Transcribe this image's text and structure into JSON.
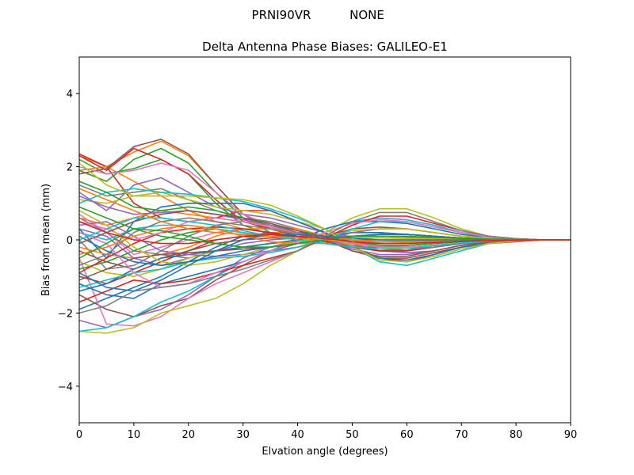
{
  "chart_data": {
    "type": "line",
    "suptitle_left": "PRNI90VR",
    "suptitle_right": "NONE",
    "title": "Delta Antenna Phase Biases: GALILEO-E1",
    "xlabel": "Elvation angle (degrees)",
    "ylabel": "Bias from mean (mm)",
    "xlim": [
      0,
      90
    ],
    "ylim": [
      -5,
      5
    ],
    "x": [
      0,
      5,
      10,
      15,
      20,
      25,
      30,
      35,
      40,
      45,
      50,
      55,
      60,
      65,
      70,
      75,
      80,
      85,
      90
    ],
    "xticks": [
      0,
      10,
      20,
      30,
      40,
      50,
      60,
      70,
      80,
      90
    ],
    "yticks": [
      -4,
      -2,
      0,
      2,
      4
    ],
    "xtick_labels": [
      "0",
      "10",
      "20",
      "30",
      "40",
      "50",
      "60",
      "70",
      "80",
      "90"
    ],
    "ytick_labels": [
      "−4",
      "−2",
      "0",
      "2",
      "4"
    ],
    "grid": false,
    "legend": "none",
    "colors": [
      "#1f77b4",
      "#ff7f0e",
      "#2ca02c",
      "#d62728",
      "#9467bd",
      "#8c564b",
      "#e377c2",
      "#7f7f7f",
      "#bcbd22",
      "#17becf"
    ],
    "series": [
      {
        "values": [
          -1.9,
          -1.6,
          -1.3,
          -1.0,
          -0.6,
          -0.2,
          0.1,
          0.2,
          0.05,
          -0.1,
          -0.2,
          -0.2,
          -0.15,
          -0.1,
          -0.05,
          -0.03,
          -0.01,
          0.0,
          0.0
        ]
      },
      {
        "values": [
          2.3,
          2.0,
          1.6,
          1.2,
          0.8,
          0.5,
          0.3,
          0.2,
          0.2,
          0.15,
          0.1,
          0.1,
          0.08,
          0.05,
          0.03,
          0.02,
          0.01,
          0.0,
          0.0
        ]
      },
      {
        "values": [
          2.2,
          1.8,
          1.95,
          2.2,
          1.8,
          1.0,
          0.4,
          0.15,
          0.05,
          0.0,
          -0.05,
          -0.05,
          -0.04,
          -0.03,
          -0.02,
          -0.01,
          0.0,
          0.0,
          0.0
        ]
      },
      {
        "values": [
          2.35,
          2.0,
          1.0,
          0.6,
          0.5,
          0.6,
          0.8,
          0.8,
          0.5,
          0.2,
          -0.2,
          -0.5,
          -0.6,
          -0.4,
          -0.2,
          -0.1,
          -0.05,
          0.0,
          0.0
        ]
      },
      {
        "values": [
          -2.2,
          -2.4,
          -2.1,
          -1.9,
          -1.5,
          -1.0,
          -0.5,
          -0.2,
          0.0,
          0.1,
          0.2,
          0.2,
          0.15,
          0.1,
          0.05,
          0.02,
          0.01,
          0.0,
          0.0
        ]
      },
      {
        "values": [
          -1.5,
          -1.9,
          -2.1,
          -1.8,
          -1.6,
          -1.1,
          -0.7,
          -0.3,
          -0.1,
          0.1,
          0.3,
          0.35,
          0.3,
          0.2,
          0.1,
          0.05,
          0.02,
          0.0,
          0.0
        ]
      },
      {
        "values": [
          -0.5,
          -2.3,
          -2.35,
          -2.1,
          -1.6,
          -1.2,
          -0.9,
          -0.6,
          -0.3,
          0.1,
          0.5,
          0.6,
          0.55,
          0.4,
          0.2,
          0.1,
          0.03,
          0.0,
          0.0
        ]
      },
      {
        "values": [
          0.6,
          0.2,
          -0.3,
          -0.4,
          -0.5,
          -0.3,
          -0.2,
          -0.1,
          0.0,
          0.1,
          0.1,
          0.1,
          0.08,
          0.05,
          0.03,
          0.02,
          0.01,
          0.0,
          0.0
        ]
      },
      {
        "values": [
          -2.5,
          -2.55,
          -2.4,
          -2.0,
          -1.8,
          -1.6,
          -1.2,
          -0.7,
          -0.3,
          0.2,
          0.6,
          0.85,
          0.85,
          0.6,
          0.3,
          0.1,
          0.03,
          0.0,
          0.0
        ]
      },
      {
        "values": [
          -2.5,
          -2.4,
          -2.1,
          -1.7,
          -1.4,
          -1.0,
          -0.6,
          -0.3,
          0.0,
          0.3,
          0.5,
          0.6,
          0.55,
          0.4,
          0.2,
          0.1,
          0.03,
          0.0,
          0.0
        ]
      },
      {
        "values": [
          -1.2,
          -1.5,
          -1.6,
          -1.2,
          -1.0,
          -0.8,
          -0.6,
          -0.3,
          0.0,
          0.3,
          0.5,
          0.5,
          0.45,
          0.3,
          0.15,
          0.07,
          0.02,
          0.0,
          0.0
        ]
      },
      {
        "values": [
          1.9,
          2.0,
          2.4,
          2.7,
          2.3,
          1.5,
          0.7,
          0.3,
          0.1,
          0.0,
          -0.2,
          -0.3,
          -0.3,
          -0.2,
          -0.1,
          -0.05,
          -0.02,
          0.0,
          0.0
        ]
      },
      {
        "values": [
          1.9,
          1.6,
          2.2,
          2.5,
          2.1,
          1.3,
          0.6,
          0.2,
          0.05,
          -0.05,
          -0.2,
          -0.3,
          -0.25,
          -0.2,
          -0.1,
          -0.05,
          -0.02,
          0.0,
          0.0
        ]
      },
      {
        "values": [
          2.3,
          1.9,
          2.5,
          2.2,
          1.8,
          1.1,
          0.5,
          0.3,
          0.2,
          0.1,
          -0.1,
          -0.2,
          -0.2,
          -0.15,
          -0.1,
          -0.05,
          -0.02,
          0.0,
          0.0
        ]
      },
      {
        "values": [
          1.3,
          0.8,
          1.5,
          1.7,
          1.3,
          0.9,
          0.7,
          0.6,
          0.4,
          0.2,
          -0.1,
          -0.3,
          -0.35,
          -0.3,
          -0.15,
          -0.07,
          -0.02,
          0.0,
          0.0
        ]
      },
      {
        "values": [
          1.8,
          1.95,
          2.55,
          2.75,
          2.35,
          1.5,
          0.7,
          0.3,
          0.1,
          0.0,
          -0.3,
          -0.5,
          -0.5,
          -0.35,
          -0.2,
          -0.1,
          -0.03,
          0.0,
          0.0
        ]
      },
      {
        "values": [
          2.0,
          1.8,
          1.9,
          2.1,
          1.9,
          1.3,
          0.7,
          0.4,
          0.2,
          0.05,
          -0.1,
          -0.2,
          -0.2,
          -0.15,
          -0.1,
          -0.05,
          -0.02,
          0.0,
          0.0
        ]
      },
      {
        "values": [
          1.5,
          1.2,
          1.3,
          1.4,
          1.1,
          0.8,
          0.6,
          0.5,
          0.3,
          0.1,
          -0.1,
          -0.2,
          -0.2,
          -0.15,
          -0.1,
          -0.05,
          -0.02,
          0.0,
          0.0
        ]
      },
      {
        "values": [
          1.1,
          1.0,
          1.2,
          1.3,
          1.1,
          0.9,
          0.8,
          0.7,
          0.5,
          0.3,
          0.0,
          -0.2,
          -0.25,
          -0.2,
          -0.1,
          -0.05,
          -0.02,
          0.0,
          0.0
        ]
      },
      {
        "values": [
          1.0,
          1.3,
          1.4,
          1.3,
          1.25,
          1.15,
          1.05,
          0.85,
          0.6,
          0.3,
          -0.2,
          -0.6,
          -0.7,
          -0.5,
          -0.3,
          -0.1,
          -0.03,
          0.0,
          0.0
        ]
      },
      {
        "values": [
          0.3,
          -0.5,
          0.5,
          0.9,
          1.0,
          1.0,
          1.0,
          0.8,
          0.5,
          0.2,
          -0.2,
          -0.5,
          -0.55,
          -0.4,
          -0.2,
          -0.1,
          -0.03,
          0.0,
          0.0
        ]
      },
      {
        "values": [
          0.6,
          0.4,
          0.6,
          0.8,
          0.7,
          0.6,
          0.5,
          0.4,
          0.3,
          0.1,
          -0.1,
          -0.2,
          -0.2,
          -0.15,
          -0.1,
          -0.05,
          -0.02,
          0.0,
          0.0
        ]
      },
      {
        "values": [
          -0.8,
          -0.6,
          -0.3,
          0.0,
          0.2,
          0.3,
          0.2,
          0.1,
          0.0,
          -0.1,
          -0.2,
          -0.2,
          -0.15,
          -0.1,
          -0.05,
          -0.02,
          -0.01,
          0.0,
          0.0
        ]
      },
      {
        "values": [
          -1.0,
          -1.2,
          -0.9,
          -0.6,
          -0.3,
          0.0,
          0.1,
          0.1,
          0.05,
          0.0,
          -0.05,
          -0.05,
          -0.04,
          -0.03,
          -0.02,
          -0.01,
          0.0,
          0.0,
          0.0
        ]
      },
      {
        "values": [
          0.3,
          0.1,
          -0.5,
          -0.7,
          -0.5,
          -0.3,
          -0.1,
          0.0,
          0.05,
          0.1,
          0.1,
          0.1,
          0.08,
          0.05,
          0.03,
          0.02,
          0.01,
          0.0,
          0.0
        ]
      },
      {
        "values": [
          -0.3,
          -0.6,
          -0.8,
          -0.5,
          -0.3,
          -0.1,
          0.0,
          0.05,
          0.05,
          0.05,
          0.0,
          0.0,
          0.0,
          0.0,
          0.0,
          0.0,
          0.0,
          0.0,
          0.0
        ]
      },
      {
        "values": [
          0.7,
          0.2,
          -0.4,
          -0.2,
          0.0,
          0.2,
          0.3,
          0.2,
          0.1,
          0.0,
          -0.1,
          -0.15,
          -0.15,
          -0.1,
          -0.05,
          -0.02,
          -0.01,
          0.0,
          0.0
        ]
      },
      {
        "values": [
          0.0,
          -0.8,
          -0.7,
          -0.3,
          0.1,
          0.4,
          0.5,
          0.35,
          0.2,
          0.0,
          -0.2,
          -0.3,
          -0.3,
          -0.2,
          -0.1,
          -0.05,
          -0.02,
          0.0,
          0.0
        ]
      },
      {
        "values": [
          -0.6,
          -0.9,
          -1.0,
          -0.8,
          -0.5,
          -0.3,
          -0.2,
          -0.1,
          -0.05,
          0.0,
          0.05,
          0.05,
          0.04,
          0.03,
          0.02,
          0.01,
          0.0,
          0.0,
          0.0
        ]
      },
      {
        "values": [
          0.2,
          0.0,
          0.3,
          0.4,
          0.4,
          0.3,
          0.2,
          0.1,
          0.05,
          0.0,
          -0.05,
          -0.05,
          -0.04,
          -0.03,
          -0.02,
          -0.01,
          0.0,
          0.0,
          0.0
        ]
      },
      {
        "values": [
          -1.4,
          -1.2,
          -0.8,
          -0.5,
          -0.4,
          -0.3,
          -0.2,
          -0.1,
          0.0,
          0.1,
          0.2,
          0.2,
          0.15,
          0.1,
          0.05,
          0.02,
          0.01,
          0.0,
          0.0
        ]
      },
      {
        "values": [
          -0.2,
          -0.4,
          -0.5,
          -0.4,
          -0.2,
          0.1,
          0.3,
          0.3,
          0.2,
          0.1,
          0.0,
          -0.05,
          -0.05,
          -0.03,
          -0.02,
          -0.01,
          0.0,
          0.0,
          0.0
        ]
      },
      {
        "values": [
          0.9,
          0.6,
          0.3,
          0.1,
          0.0,
          -0.1,
          -0.2,
          -0.2,
          -0.1,
          0.0,
          0.1,
          0.15,
          0.15,
          0.1,
          0.05,
          0.02,
          0.01,
          0.0,
          0.0
        ]
      },
      {
        "values": [
          -0.9,
          -0.5,
          -0.1,
          0.2,
          0.3,
          0.35,
          0.3,
          0.2,
          0.1,
          -0.05,
          -0.2,
          -0.3,
          -0.3,
          -0.2,
          -0.1,
          -0.05,
          -0.02,
          0.0,
          0.0
        ]
      },
      {
        "values": [
          0.4,
          0.5,
          0.1,
          -0.3,
          -0.4,
          -0.45,
          -0.4,
          -0.3,
          -0.2,
          0.0,
          0.2,
          0.3,
          0.3,
          0.2,
          0.1,
          0.05,
          0.02,
          0.0,
          0.0
        ]
      },
      {
        "values": [
          -1.1,
          -0.8,
          -0.5,
          -0.4,
          -0.35,
          -0.3,
          -0.25,
          -0.2,
          -0.1,
          0.0,
          0.1,
          0.15,
          0.15,
          0.1,
          0.05,
          0.02,
          0.01,
          0.0,
          0.0
        ]
      },
      {
        "values": [
          0.5,
          0.3,
          0.0,
          0.2,
          0.5,
          0.6,
          0.5,
          0.35,
          0.2,
          0.05,
          -0.1,
          -0.2,
          -0.2,
          -0.15,
          -0.1,
          -0.05,
          -0.02,
          0.0,
          0.0
        ]
      },
      {
        "values": [
          -0.7,
          -0.4,
          0.2,
          0.5,
          0.6,
          0.5,
          0.4,
          0.3,
          0.15,
          0.0,
          -0.15,
          -0.25,
          -0.25,
          -0.2,
          -0.1,
          -0.05,
          -0.02,
          0.0,
          0.0
        ]
      },
      {
        "values": [
          0.8,
          0.4,
          -0.2,
          -0.6,
          -0.7,
          -0.6,
          -0.4,
          -0.2,
          -0.05,
          0.1,
          0.25,
          0.3,
          0.3,
          0.2,
          0.1,
          0.05,
          0.02,
          0.0,
          0.0
        ]
      },
      {
        "values": [
          -1.3,
          -1.1,
          -0.9,
          -0.8,
          -0.6,
          -0.5,
          -0.45,
          -0.35,
          -0.2,
          0.0,
          0.3,
          0.5,
          0.5,
          0.35,
          0.2,
          0.08,
          0.02,
          0.0,
          0.0
        ]
      },
      {
        "values": [
          0.1,
          -0.3,
          -0.6,
          -0.7,
          -0.6,
          -0.45,
          -0.3,
          -0.2,
          -0.1,
          0.0,
          0.1,
          0.15,
          0.15,
          0.1,
          0.05,
          0.02,
          0.01,
          0.0,
          0.0
        ]
      },
      {
        "values": [
          -0.4,
          -0.2,
          0.1,
          0.3,
          0.4,
          0.3,
          0.1,
          -0.05,
          -0.1,
          -0.1,
          -0.1,
          -0.1,
          -0.08,
          -0.05,
          -0.03,
          -0.02,
          -0.01,
          0.0,
          0.0
        ]
      },
      {
        "values": [
          1.6,
          1.3,
          0.9,
          0.8,
          0.9,
          0.8,
          0.6,
          0.4,
          0.25,
          0.1,
          -0.05,
          -0.15,
          -0.15,
          -0.1,
          -0.05,
          -0.02,
          -0.01,
          0.0,
          0.0
        ]
      },
      {
        "values": [
          -1.7,
          -1.4,
          -1.1,
          -1.2,
          -1.1,
          -0.9,
          -0.7,
          -0.5,
          -0.3,
          0.05,
          0.4,
          0.65,
          0.65,
          0.45,
          0.25,
          0.1,
          0.03,
          0.0,
          0.0
        ]
      },
      {
        "values": [
          1.2,
          0.9,
          0.7,
          0.75,
          0.8,
          0.7,
          0.55,
          0.4,
          0.2,
          0.0,
          -0.25,
          -0.4,
          -0.4,
          -0.3,
          -0.15,
          -0.07,
          -0.02,
          0.0,
          0.0
        ]
      },
      {
        "values": [
          -0.1,
          0.2,
          0.5,
          0.7,
          0.8,
          0.7,
          0.6,
          0.45,
          0.25,
          0.0,
          -0.3,
          -0.45,
          -0.45,
          -0.3,
          -0.15,
          -0.07,
          -0.02,
          0.0,
          0.0
        ]
      },
      {
        "values": [
          0.2,
          -0.1,
          -0.9,
          -1.3,
          -1.2,
          -0.9,
          -0.6,
          -0.3,
          -0.05,
          0.2,
          0.45,
          0.55,
          0.5,
          0.35,
          0.2,
          0.08,
          0.02,
          0.0,
          0.0
        ]
      },
      {
        "values": [
          -2.0,
          -1.8,
          -1.4,
          -1.3,
          -1.2,
          -1.0,
          -0.8,
          -0.55,
          -0.3,
          0.1,
          0.5,
          0.75,
          0.75,
          0.5,
          0.25,
          0.1,
          0.03,
          0.0,
          0.0
        ]
      },
      {
        "values": [
          2.1,
          1.5,
          1.2,
          1.2,
          1.2,
          1.15,
          1.1,
          0.95,
          0.65,
          0.3,
          -0.2,
          -0.55,
          -0.6,
          -0.45,
          -0.25,
          -0.1,
          -0.03,
          0.0,
          0.0
        ]
      },
      {
        "values": [
          0.0,
          0.3,
          0.6,
          0.6,
          0.5,
          0.4,
          0.25,
          0.1,
          0.0,
          -0.1,
          -0.2,
          -0.25,
          -0.25,
          -0.15,
          -0.08,
          -0.04,
          -0.01,
          0.0,
          0.0
        ]
      },
      {
        "values": [
          -0.9,
          -1.3,
          -1.4,
          -1.1,
          -0.7,
          -0.3,
          0.0,
          0.15,
          0.15,
          0.1,
          0.05,
          0.0,
          0.0,
          0.0,
          0.0,
          0.0,
          0.0,
          0.0,
          0.0
        ]
      },
      {
        "values": [
          1.4,
          1.1,
          0.8,
          0.5,
          0.3,
          0.2,
          0.15,
          0.1,
          0.05,
          0.0,
          -0.05,
          -0.1,
          -0.1,
          -0.07,
          -0.04,
          -0.02,
          -0.01,
          0.0,
          0.0
        ]
      },
      {
        "values": [
          -0.5,
          -0.1,
          0.3,
          0.25,
          0.1,
          -0.1,
          -0.2,
          -0.2,
          -0.1,
          0.0,
          0.1,
          0.1,
          0.1,
          0.07,
          0.04,
          0.02,
          0.01,
          0.0,
          0.0
        ]
      },
      {
        "values": [
          0.5,
          0.2,
          0.0,
          -0.1,
          -0.1,
          0.0,
          0.1,
          0.15,
          0.1,
          0.05,
          -0.05,
          -0.1,
          -0.1,
          -0.07,
          -0.04,
          -0.02,
          -0.01,
          0.0,
          0.0
        ]
      }
    ]
  }
}
